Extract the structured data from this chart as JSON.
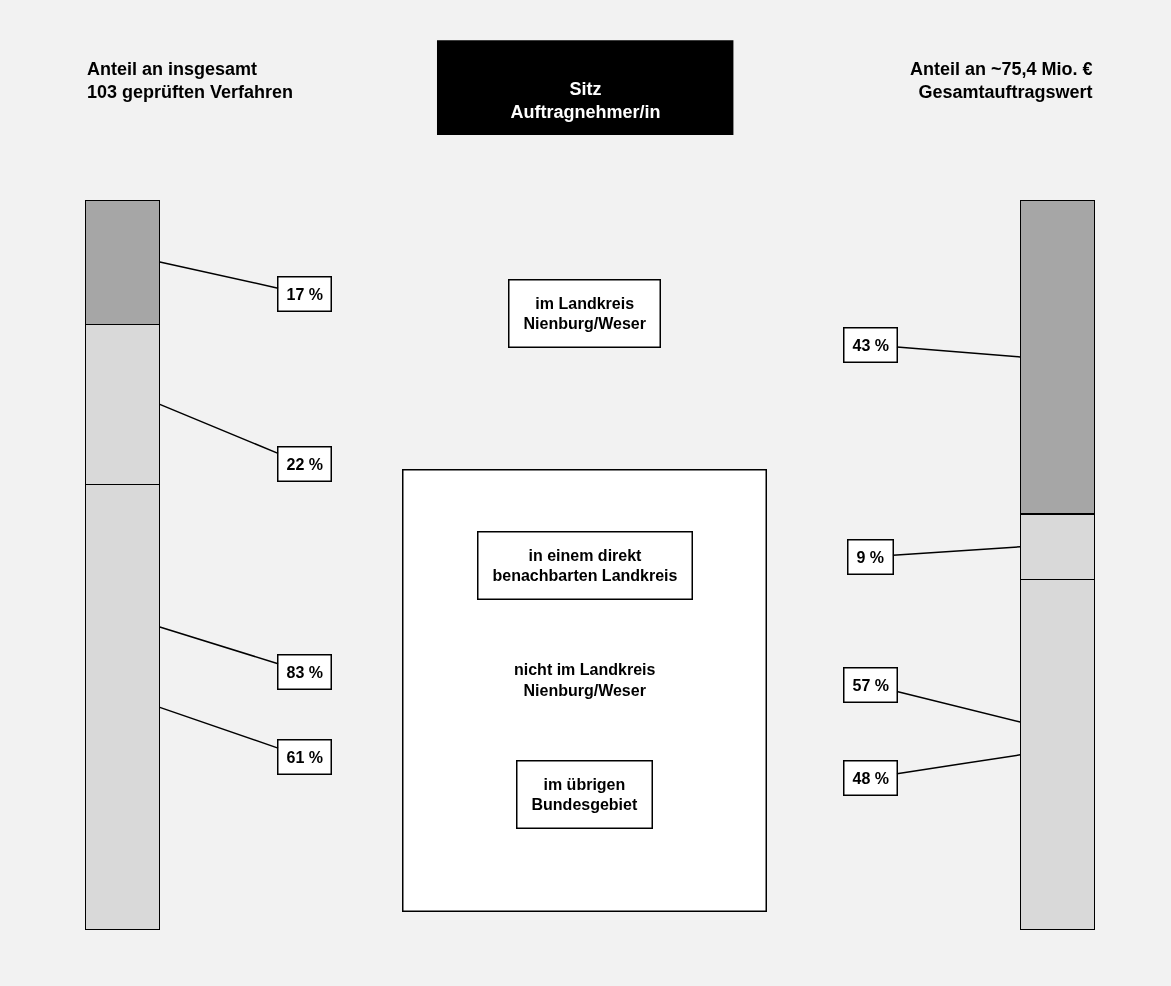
{
  "chart_data": {
    "type": "bar",
    "stacked": true,
    "title": "Sitz\nAuftragnehmer/in",
    "categories": [
      "Anteil an insgesamt\n103 geprüften Verfahren",
      "Anteil an ~75,4 Mio. €\nGesamtauftragswert"
    ],
    "series": [
      {
        "color": "#d9d9d9",
        "values": [
          61,
          48
        ],
        "value_labels": [
          "61 %",
          "48 %"
        ]
      },
      {
        "color": "#d9d9d9",
        "values": [
          22,
          9
        ],
        "value_labels": [
          "22 %",
          "9 %"
        ]
      },
      {
        "color": "#a6a6a6",
        "values": [
          17,
          43
        ],
        "value_labels": [
          "17 %",
          "43 %"
        ]
      }
    ],
    "annotations": [
      "nicht im Landkreis\nNienburg/Weser",
      "im Landkreis\nNienburg/Weser",
      "in einem direkt\nbenachbarten Landkreis",
      "im übrigen\nBundesgebiet",
      "83 %",
      "57 %"
    ]
  }
}
